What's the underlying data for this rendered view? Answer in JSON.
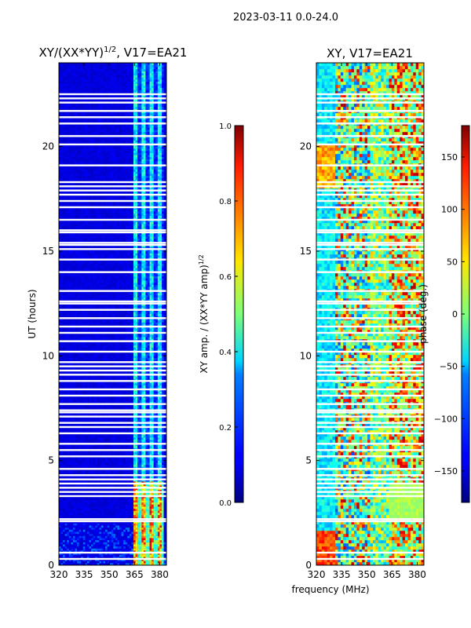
{
  "figure_title": "2023-03-11 0.0-24.0",
  "chart_data": [
    {
      "type": "heatmap",
      "panel": "amplitude",
      "title_main": "XY/(XX*YY)",
      "title_sup": "1/2",
      "title_tail": ", V17=EA21",
      "ylabel": "UT (hours)",
      "xlabel": "",
      "x_ticks": [
        320,
        335,
        350,
        365,
        380
      ],
      "y_ticks": [
        0,
        5,
        10,
        15,
        20
      ],
      "xlim": [
        320,
        384
      ],
      "ylim": [
        0,
        24
      ],
      "colorbar": {
        "label_main": "XY amp. / (XX*YY amp)",
        "label_sup": "1/2",
        "ticks": [
          "0.0",
          "0.2",
          "0.4",
          "0.6",
          "0.8",
          "1.0"
        ],
        "range": [
          0,
          1
        ],
        "colormap": "jet"
      },
      "active_band_MHz": [
        364,
        382
      ],
      "strong_interval_hours": [
        0,
        4
      ]
    },
    {
      "type": "heatmap",
      "panel": "phase",
      "title_main": "XY, V17=EA21",
      "ylabel": "",
      "xlabel": "frequency (MHz)",
      "x_ticks": [
        320,
        335,
        350,
        365,
        380
      ],
      "y_ticks": [
        0,
        5,
        10,
        15,
        20
      ],
      "xlim": [
        320,
        384
      ],
      "ylim": [
        0,
        24
      ],
      "colorbar": {
        "label_main": "phase (deg.)",
        "ticks": [
          "−150",
          "−100",
          "−50",
          "0",
          "50",
          "100",
          "150"
        ],
        "tick_values": [
          -150,
          -100,
          -50,
          0,
          50,
          100,
          150
        ],
        "range": [
          -180,
          180
        ],
        "colormap": "jet"
      }
    }
  ],
  "flagged_rows_hours": [
    0.3,
    0.6,
    2.1,
    2.2,
    3.3,
    3.5,
    3.7,
    3.9,
    4.1,
    4.3,
    4.6,
    5.2,
    5.5,
    5.8,
    6.3,
    6.6,
    6.8,
    7.1,
    7.3,
    7.4,
    7.7,
    8.1,
    8.4,
    8.8,
    9.1,
    9.3,
    9.5,
    9.7,
    10.2,
    10.7,
    11.1,
    11.4,
    11.8,
    12.2,
    12.5,
    12.6,
    13.1,
    14.0,
    14.6,
    15.1,
    15.3,
    15.4,
    15.9,
    16.0,
    16.5,
    17.1,
    17.4,
    17.7,
    17.9,
    18.1,
    18.3,
    19.1,
    20.1,
    20.5,
    21.1,
    21.4,
    21.7,
    22.1,
    22.3,
    22.5
  ]
}
